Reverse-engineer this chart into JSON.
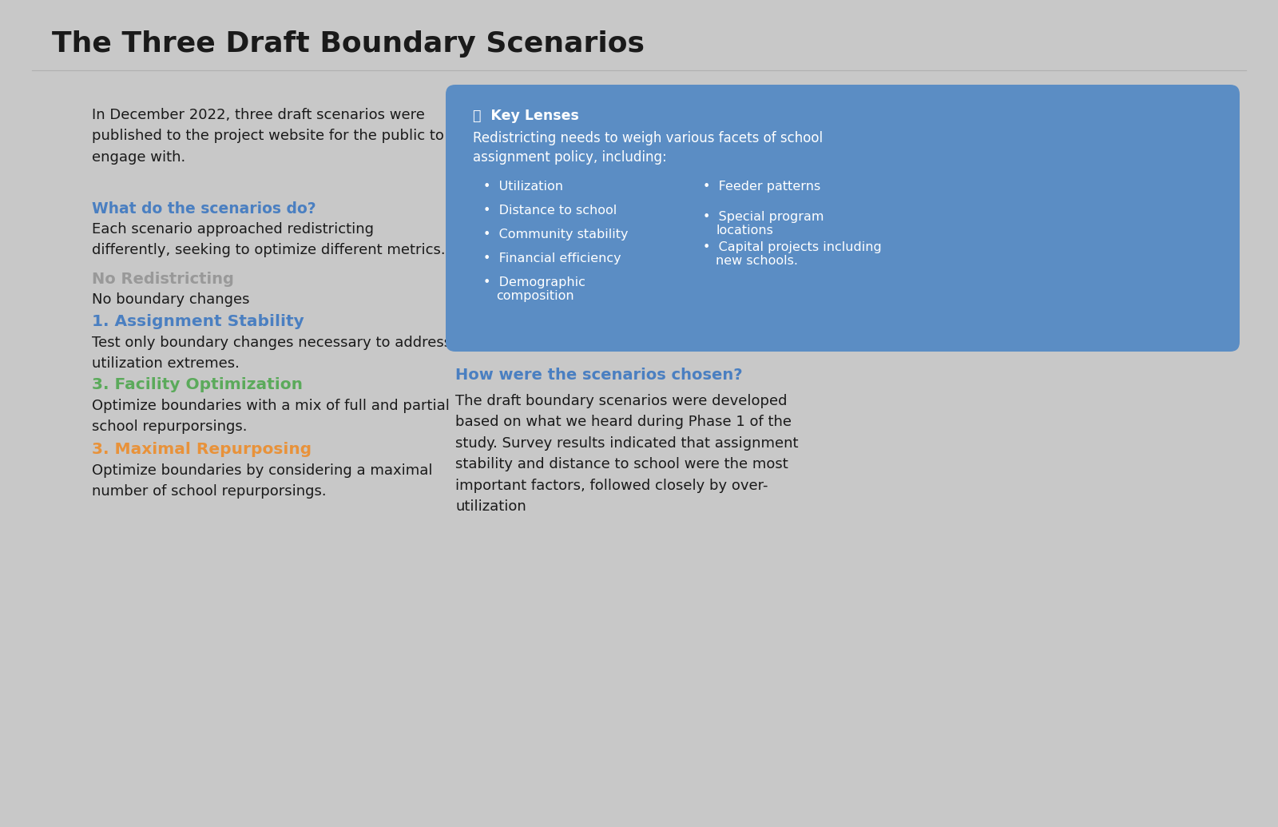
{
  "title": "The Three Draft Boundary Scenarios",
  "bg_color": "#c8c8c8",
  "title_color": "#1a1a1a",
  "title_fontsize": 26,
  "intro_text": "In December 2022, three draft scenarios were\npublished to the project website for the public to\nengage with.",
  "what_heading": "What do the scenarios do?",
  "what_heading_color": "#4a7fc1",
  "what_body": "Each scenario approached redistricting\ndifferently, seeking to optimize different metrics.",
  "scenario0_label": "No Redistricting",
  "scenario0_color": "#999999",
  "scenario0_body": "No boundary changes",
  "scenario1_label": "1. Assignment Stability",
  "scenario1_color": "#4a7fc1",
  "scenario1_body": "Test only boundary changes necessary to address\nutilization extremes.",
  "scenario2_label": "3. Facility Optimization",
  "scenario2_color": "#5baa5b",
  "scenario2_body": "Optimize boundaries with a mix of full and partial\nschool repurporsings.",
  "scenario3_label": "3. Maximal Repurposing",
  "scenario3_color": "#e8923a",
  "scenario3_body": "Optimize boundaries by considering a maximal\nnumber of school repurporsings.",
  "box_bg_color": "#5b8dc4",
  "box_title": "ⓘ  Key Lenses",
  "box_title_color": "#ffffff",
  "box_intro": "Redistricting needs to weigh various facets of school\nassignment policy, including:",
  "box_intro_color": "#ffffff",
  "box_col1": [
    "Utilization",
    "Distance to school",
    "Community stability",
    "Financial efficiency",
    "Demographic\ncomposition"
  ],
  "box_col2": [
    "Feeder patterns",
    "Special program\nlocations",
    "Capital projects including\nnew schools."
  ],
  "box_text_color": "#ffffff",
  "how_heading": "How were the scenarios chosen?",
  "how_heading_color": "#4a7fc1",
  "how_body": "The draft boundary scenarios were developed\nbased on what we heard during Phase 1 of the\nstudy. Survey results indicated that assignment\nstability and distance to school were the most\nimportant factors, followed closely by over-\nutilization"
}
